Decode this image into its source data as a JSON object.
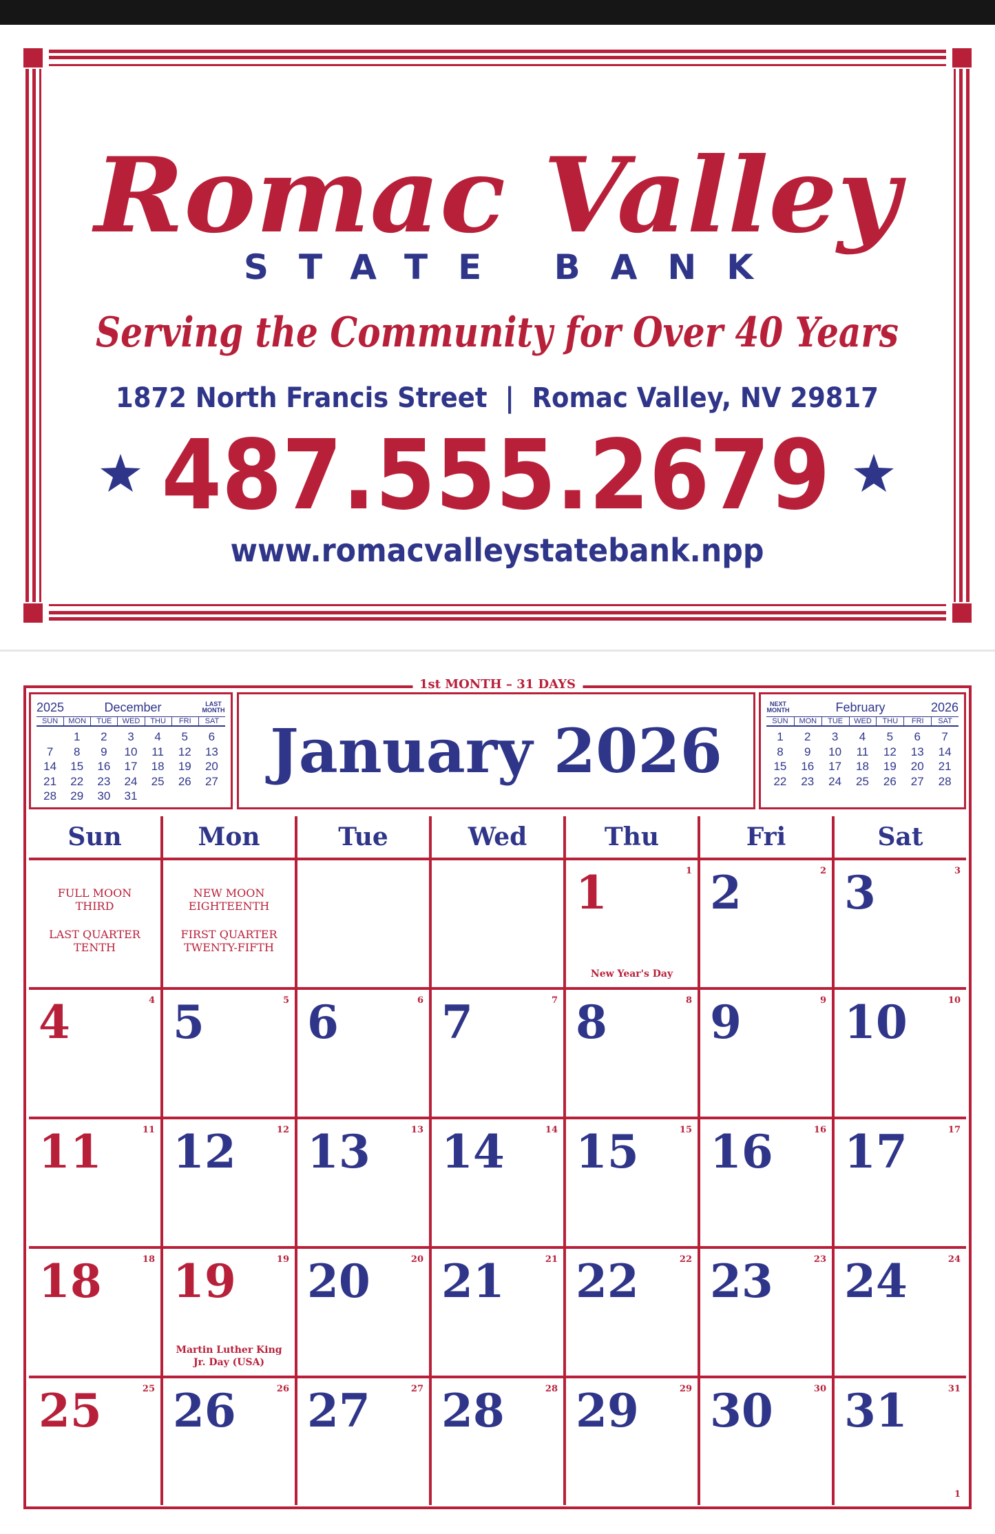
{
  "header": {
    "brand": "Romac Valley",
    "subtitle": "STATE BANK",
    "tagline": "Serving the Community for Over 40 Years",
    "address": "1872 North Francis Street  |  Romac Valley, NV 29817",
    "phone": "487.555.2679",
    "website": "www.romacvalleystatebank.npp"
  },
  "calendar": {
    "banner": "1st MONTH – 31 DAYS",
    "title": "January 2026",
    "page_number": "1",
    "prev_month": {
      "year": "2025",
      "name": "December",
      "tag": "LAST MONTH",
      "weekdays": [
        "SUN",
        "MON",
        "TUE",
        "WED",
        "THU",
        "FRI",
        "SAT"
      ],
      "weeks": [
        [
          null,
          1,
          2,
          3,
          4,
          5,
          6
        ],
        [
          7,
          8,
          9,
          10,
          11,
          12,
          13
        ],
        [
          14,
          15,
          16,
          17,
          18,
          19,
          20
        ],
        [
          21,
          22,
          23,
          24,
          25,
          26,
          27
        ],
        [
          28,
          29,
          30,
          31,
          null,
          null,
          null
        ]
      ]
    },
    "next_month": {
      "tag": "NEXT MONTH",
      "name": "February",
      "year": "2026",
      "weekdays": [
        "SUN",
        "MON",
        "TUE",
        "WED",
        "THU",
        "FRI",
        "SAT"
      ],
      "weeks": [
        [
          1,
          2,
          3,
          4,
          5,
          6,
          7
        ],
        [
          8,
          9,
          10,
          11,
          12,
          13,
          14
        ],
        [
          15,
          16,
          17,
          18,
          19,
          20,
          21
        ],
        [
          22,
          23,
          24,
          25,
          26,
          27,
          28
        ]
      ]
    },
    "weekdays": [
      "Sun",
      "Mon",
      "Tue",
      "Wed",
      "Thu",
      "Fri",
      "Sat"
    ],
    "weeks": [
      [
        {
          "notes": [
            "FULL MOON THIRD",
            "LAST QUARTER TENTH"
          ]
        },
        {
          "notes": [
            "NEW MOON EIGHTEENTH",
            "FIRST QUARTER TWENTY-FIFTH"
          ]
        },
        null,
        null,
        {
          "day": 1,
          "day_of_year": 1,
          "color": "#b8203a",
          "holiday": "New Year's Day"
        },
        {
          "day": 2,
          "day_of_year": 2,
          "color": "#2f3589"
        },
        {
          "day": 3,
          "day_of_year": 3,
          "color": "#2f3589"
        }
      ],
      [
        {
          "day": 4,
          "day_of_year": 4,
          "color": "#b8203a"
        },
        {
          "day": 5,
          "day_of_year": 5,
          "color": "#2f3589"
        },
        {
          "day": 6,
          "day_of_year": 6,
          "color": "#2f3589"
        },
        {
          "day": 7,
          "day_of_year": 7,
          "color": "#2f3589"
        },
        {
          "day": 8,
          "day_of_year": 8,
          "color": "#2f3589"
        },
        {
          "day": 9,
          "day_of_year": 9,
          "color": "#2f3589"
        },
        {
          "day": 10,
          "day_of_year": 10,
          "color": "#2f3589"
        }
      ],
      [
        {
          "day": 11,
          "day_of_year": 11,
          "color": "#b8203a"
        },
        {
          "day": 12,
          "day_of_year": 12,
          "color": "#2f3589"
        },
        {
          "day": 13,
          "day_of_year": 13,
          "color": "#2f3589"
        },
        {
          "day": 14,
          "day_of_year": 14,
          "color": "#2f3589"
        },
        {
          "day": 15,
          "day_of_year": 15,
          "color": "#2f3589"
        },
        {
          "day": 16,
          "day_of_year": 16,
          "color": "#2f3589"
        },
        {
          "day": 17,
          "day_of_year": 17,
          "color": "#2f3589"
        }
      ],
      [
        {
          "day": 18,
          "day_of_year": 18,
          "color": "#b8203a"
        },
        {
          "day": 19,
          "day_of_year": 19,
          "color": "#b8203a",
          "holiday": "Martin Luther King Jr. Day (USA)"
        },
        {
          "day": 20,
          "day_of_year": 20,
          "color": "#2f3589"
        },
        {
          "day": 21,
          "day_of_year": 21,
          "color": "#2f3589"
        },
        {
          "day": 22,
          "day_of_year": 22,
          "color": "#2f3589"
        },
        {
          "day": 23,
          "day_of_year": 23,
          "color": "#2f3589"
        },
        {
          "day": 24,
          "day_of_year": 24,
          "color": "#2f3589"
        }
      ],
      [
        {
          "day": 25,
          "day_of_year": 25,
          "color": "#b8203a"
        },
        {
          "day": 26,
          "day_of_year": 26,
          "color": "#2f3589"
        },
        {
          "day": 27,
          "day_of_year": 27,
          "color": "#2f3589"
        },
        {
          "day": 28,
          "day_of_year": 28,
          "color": "#2f3589"
        },
        {
          "day": 29,
          "day_of_year": 29,
          "color": "#2f3589"
        },
        {
          "day": 30,
          "day_of_year": 30,
          "color": "#2f3589"
        },
        {
          "day": 31,
          "day_of_year": 31,
          "color": "#2f3589"
        }
      ]
    ]
  }
}
